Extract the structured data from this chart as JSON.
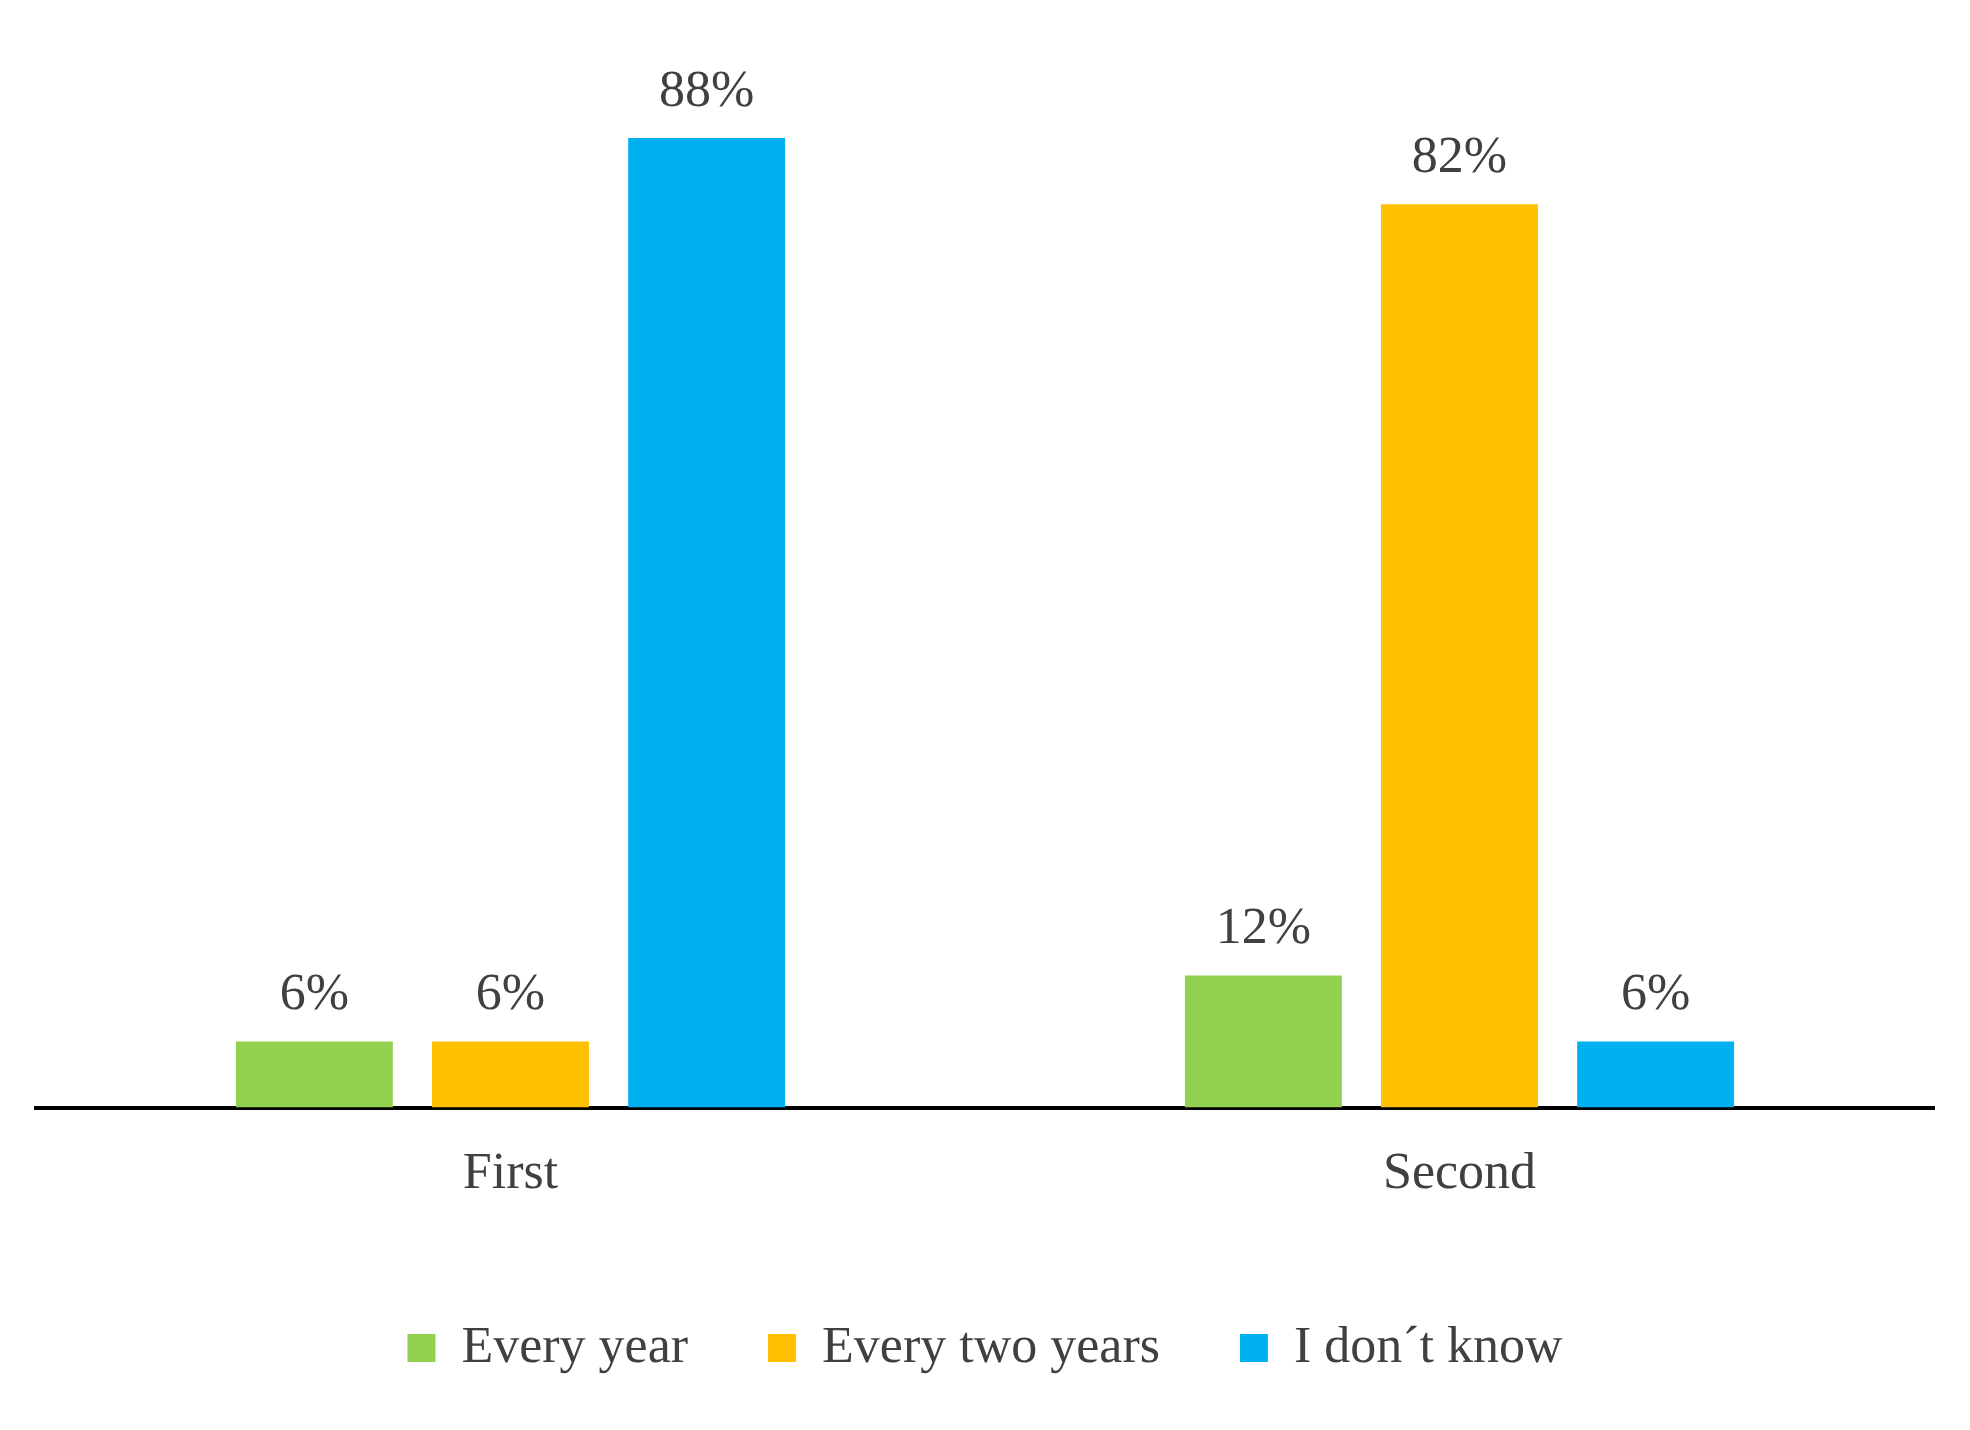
{
  "chart_data": {
    "type": "bar",
    "categories": [
      "First",
      "Second"
    ],
    "series": [
      {
        "name": "Every year",
        "color": "#92d050",
        "values": [
          6,
          12
        ],
        "value_labels": [
          "6%",
          "12%"
        ]
      },
      {
        "name": "Every two years",
        "color": "#ffc000",
        "values": [
          6,
          82
        ],
        "value_labels": [
          "6%",
          "82%"
        ]
      },
      {
        "name": "I don´t know",
        "color": "#00b0f0",
        "values": [
          88,
          6
        ],
        "value_labels": [
          "88%",
          "6%"
        ]
      }
    ],
    "legend": "bottom",
    "grid": false
  }
}
